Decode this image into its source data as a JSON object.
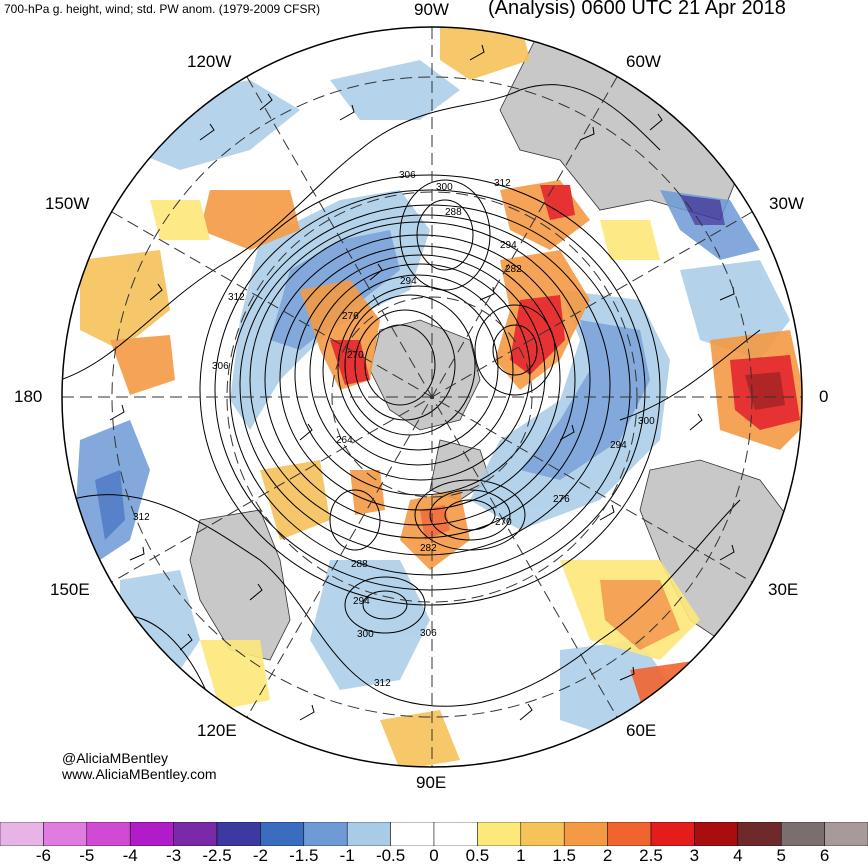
{
  "header": {
    "left_title": "700-hPa g. height, wind; std. PW anom. (1979-2009 CFSR)",
    "right_title": "(Analysis) 0600 UTC 21 Apr 2018"
  },
  "longitude_labels": {
    "lon_90W": "90W",
    "lon_120W": "120W",
    "lon_60W": "60W",
    "lon_150W": "150W",
    "lon_30W": "30W",
    "lon_180": "180",
    "lon_0": "0",
    "lon_150E": "150E",
    "lon_30E": "30E",
    "lon_120E": "120E",
    "lon_60E": "60E",
    "lon_90E": "90E"
  },
  "contour_labels": {
    "c1": "306",
    "c2": "300",
    "c3": "288",
    "c4": "312",
    "c5": "294",
    "c6": "282",
    "c7": "294",
    "c8": "312",
    "c9": "276",
    "c10": "270",
    "c11": "306",
    "c12": "264",
    "c13": "300",
    "c14": "294",
    "c15": "276",
    "c16": "270",
    "c17": "282",
    "c18": "288",
    "c19": "294",
    "c20": "300",
    "c21": "306",
    "c22": "312",
    "c23": "312"
  },
  "credits": {
    "handle": "@AliciaMBentley",
    "website": "www.AliciaMBentley.com"
  },
  "colorbar": {
    "ticks": [
      "-6",
      "-5",
      "-4",
      "-3",
      "-2.5",
      "-2",
      "-1.5",
      "-1",
      "-0.5",
      "0",
      "0.5",
      "1",
      "1.5",
      "2",
      "2.5",
      "3",
      "4",
      "5",
      "6"
    ],
    "colors": [
      "#e8b4e8",
      "#e07ce0",
      "#d04ad4",
      "#b01cc8",
      "#7a2aa8",
      "#3c3aa0",
      "#3a6cc0",
      "#6e9ad6",
      "#a8cce8",
      "#ffffff",
      "#ffffff",
      "#fde87a",
      "#f6c25a",
      "#f49a44",
      "#f06430",
      "#e41c1c",
      "#a80e0e",
      "#6e2a2a",
      "#7a6e6e",
      "#a89a9a"
    ]
  },
  "colors": {
    "land": "#c8c8c8",
    "negative_anom": "#6e9ad6",
    "positive_anom": "#f49a44",
    "contour": "#000000"
  }
}
